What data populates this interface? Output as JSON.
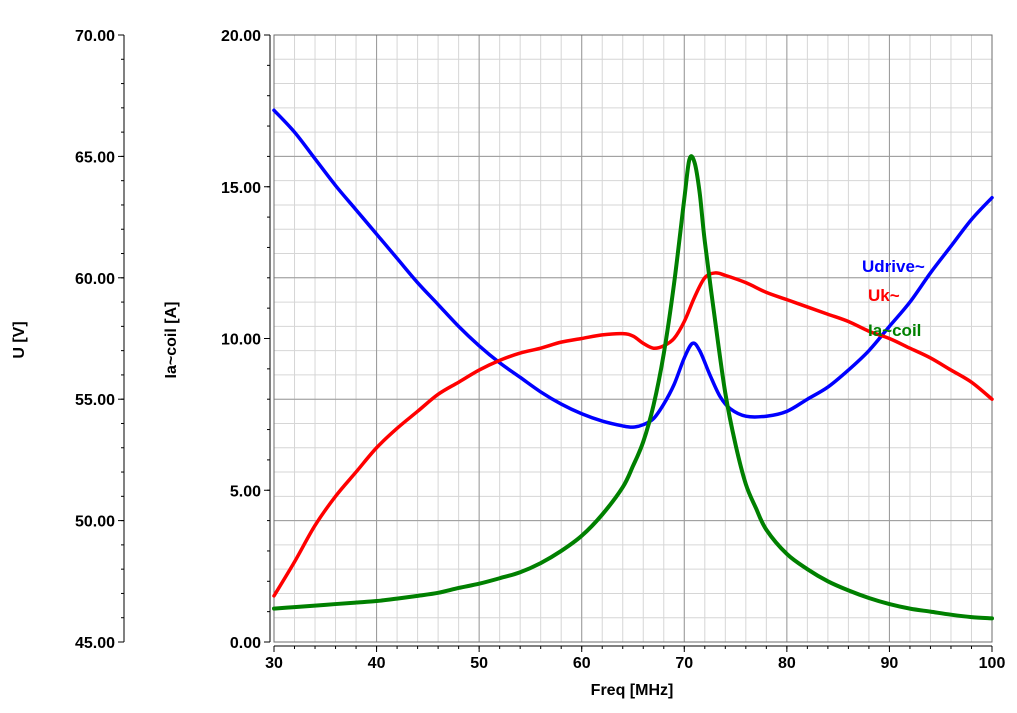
{
  "chart_data": {
    "type": "line",
    "title": "",
    "xlabel": "Freq [MHz]",
    "ylabel_left": "U [V]",
    "ylabel_right": "Ia~coil [A]",
    "grid": true,
    "legend_placement": "right",
    "x_axis": {
      "range": [
        30,
        100
      ],
      "ticks": [
        30,
        40,
        50,
        60,
        70,
        80,
        90,
        100
      ],
      "tick_labels": [
        "30",
        "40",
        "50",
        "60",
        "70",
        "80",
        "90",
        "100"
      ]
    },
    "y_axis_u": {
      "range": [
        45,
        70
      ],
      "ticks": [
        45,
        50,
        55,
        60,
        65,
        70
      ],
      "tick_labels": [
        "45.00",
        "50.00",
        "55.00",
        "60.00",
        "65.00",
        "70.00"
      ]
    },
    "y_axis_i": {
      "range": [
        0,
        20
      ],
      "ticks": [
        0,
        5,
        10,
        15,
        20
      ],
      "tick_labels": [
        "0.00",
        "5.00",
        "10.00",
        "15.00",
        "20.00"
      ]
    },
    "series": [
      {
        "name": "Udrive~",
        "axis": "u",
        "color": "#0000ff",
        "points": [
          [
            30,
            66.9
          ],
          [
            32,
            66.0
          ],
          [
            34,
            64.9
          ],
          [
            36,
            63.8
          ],
          [
            38,
            62.8
          ],
          [
            40,
            61.8
          ],
          [
            42,
            60.8
          ],
          [
            44,
            59.8
          ],
          [
            46,
            58.9
          ],
          [
            48,
            58.0
          ],
          [
            50,
            57.2
          ],
          [
            52,
            56.5
          ],
          [
            54,
            55.9
          ],
          [
            56,
            55.3
          ],
          [
            58,
            54.8
          ],
          [
            60,
            54.4
          ],
          [
            62,
            54.1
          ],
          [
            64,
            53.9
          ],
          [
            65,
            53.85
          ],
          [
            66,
            53.95
          ],
          [
            67,
            54.2
          ],
          [
            68,
            54.8
          ],
          [
            69,
            55.6
          ],
          [
            70,
            56.7
          ],
          [
            70.8,
            57.3
          ],
          [
            71.5,
            57.0
          ],
          [
            72.5,
            56.0
          ],
          [
            73.5,
            55.1
          ],
          [
            74.5,
            54.6
          ],
          [
            76,
            54.3
          ],
          [
            78,
            54.3
          ],
          [
            80,
            54.5
          ],
          [
            82,
            55.0
          ],
          [
            84,
            55.5
          ],
          [
            86,
            56.2
          ],
          [
            88,
            57.0
          ],
          [
            90,
            58.0
          ],
          [
            92,
            59.0
          ],
          [
            94,
            60.2
          ],
          [
            96,
            61.3
          ],
          [
            98,
            62.4
          ],
          [
            100,
            63.3
          ]
        ]
      },
      {
        "name": "Uk~",
        "axis": "u",
        "color": "#ff0000",
        "points": [
          [
            30,
            46.9
          ],
          [
            32,
            48.3
          ],
          [
            34,
            49.8
          ],
          [
            36,
            51.0
          ],
          [
            38,
            52.0
          ],
          [
            40,
            53.0
          ],
          [
            42,
            53.8
          ],
          [
            44,
            54.5
          ],
          [
            46,
            55.2
          ],
          [
            48,
            55.7
          ],
          [
            50,
            56.2
          ],
          [
            52,
            56.6
          ],
          [
            54,
            56.9
          ],
          [
            56,
            57.1
          ],
          [
            58,
            57.35
          ],
          [
            60,
            57.5
          ],
          [
            62,
            57.65
          ],
          [
            64,
            57.7
          ],
          [
            65,
            57.6
          ],
          [
            66,
            57.3
          ],
          [
            67,
            57.1
          ],
          [
            68,
            57.2
          ],
          [
            69,
            57.5
          ],
          [
            70,
            58.2
          ],
          [
            71,
            59.2
          ],
          [
            72,
            60.0
          ],
          [
            73,
            60.2
          ],
          [
            74,
            60.1
          ],
          [
            76,
            59.8
          ],
          [
            78,
            59.4
          ],
          [
            80,
            59.1
          ],
          [
            82,
            58.8
          ],
          [
            84,
            58.5
          ],
          [
            86,
            58.2
          ],
          [
            88,
            57.8
          ],
          [
            90,
            57.5
          ],
          [
            92,
            57.1
          ],
          [
            94,
            56.7
          ],
          [
            96,
            56.2
          ],
          [
            98,
            55.7
          ],
          [
            100,
            55.0
          ]
        ]
      },
      {
        "name": "Ia~coil",
        "axis": "i",
        "color": "#008000",
        "points": [
          [
            30,
            1.1
          ],
          [
            32,
            1.15
          ],
          [
            34,
            1.2
          ],
          [
            36,
            1.25
          ],
          [
            38,
            1.3
          ],
          [
            40,
            1.35
          ],
          [
            42,
            1.43
          ],
          [
            44,
            1.52
          ],
          [
            46,
            1.62
          ],
          [
            48,
            1.78
          ],
          [
            50,
            1.92
          ],
          [
            52,
            2.1
          ],
          [
            54,
            2.3
          ],
          [
            56,
            2.6
          ],
          [
            58,
            3.0
          ],
          [
            60,
            3.5
          ],
          [
            62,
            4.2
          ],
          [
            64,
            5.1
          ],
          [
            65,
            5.8
          ],
          [
            66,
            6.6
          ],
          [
            67,
            7.8
          ],
          [
            68,
            9.5
          ],
          [
            69,
            11.8
          ],
          [
            70,
            14.6
          ],
          [
            70.5,
            15.9
          ],
          [
            71,
            15.8
          ],
          [
            71.5,
            14.8
          ],
          [
            72,
            13.2
          ],
          [
            73,
            10.6
          ],
          [
            74,
            8.2
          ],
          [
            75,
            6.5
          ],
          [
            76,
            5.2
          ],
          [
            77,
            4.4
          ],
          [
            78,
            3.7
          ],
          [
            80,
            2.9
          ],
          [
            82,
            2.4
          ],
          [
            84,
            2.0
          ],
          [
            86,
            1.7
          ],
          [
            88,
            1.45
          ],
          [
            90,
            1.25
          ],
          [
            92,
            1.1
          ],
          [
            94,
            1.0
          ],
          [
            96,
            0.9
          ],
          [
            98,
            0.82
          ],
          [
            100,
            0.78
          ]
        ]
      }
    ],
    "legend": [
      {
        "label": "Udrive~",
        "color": "#0000ff"
      },
      {
        "label": "Uk~",
        "color": "#ff0000"
      },
      {
        "label": "Ia~coil",
        "color": "#008000"
      }
    ]
  }
}
